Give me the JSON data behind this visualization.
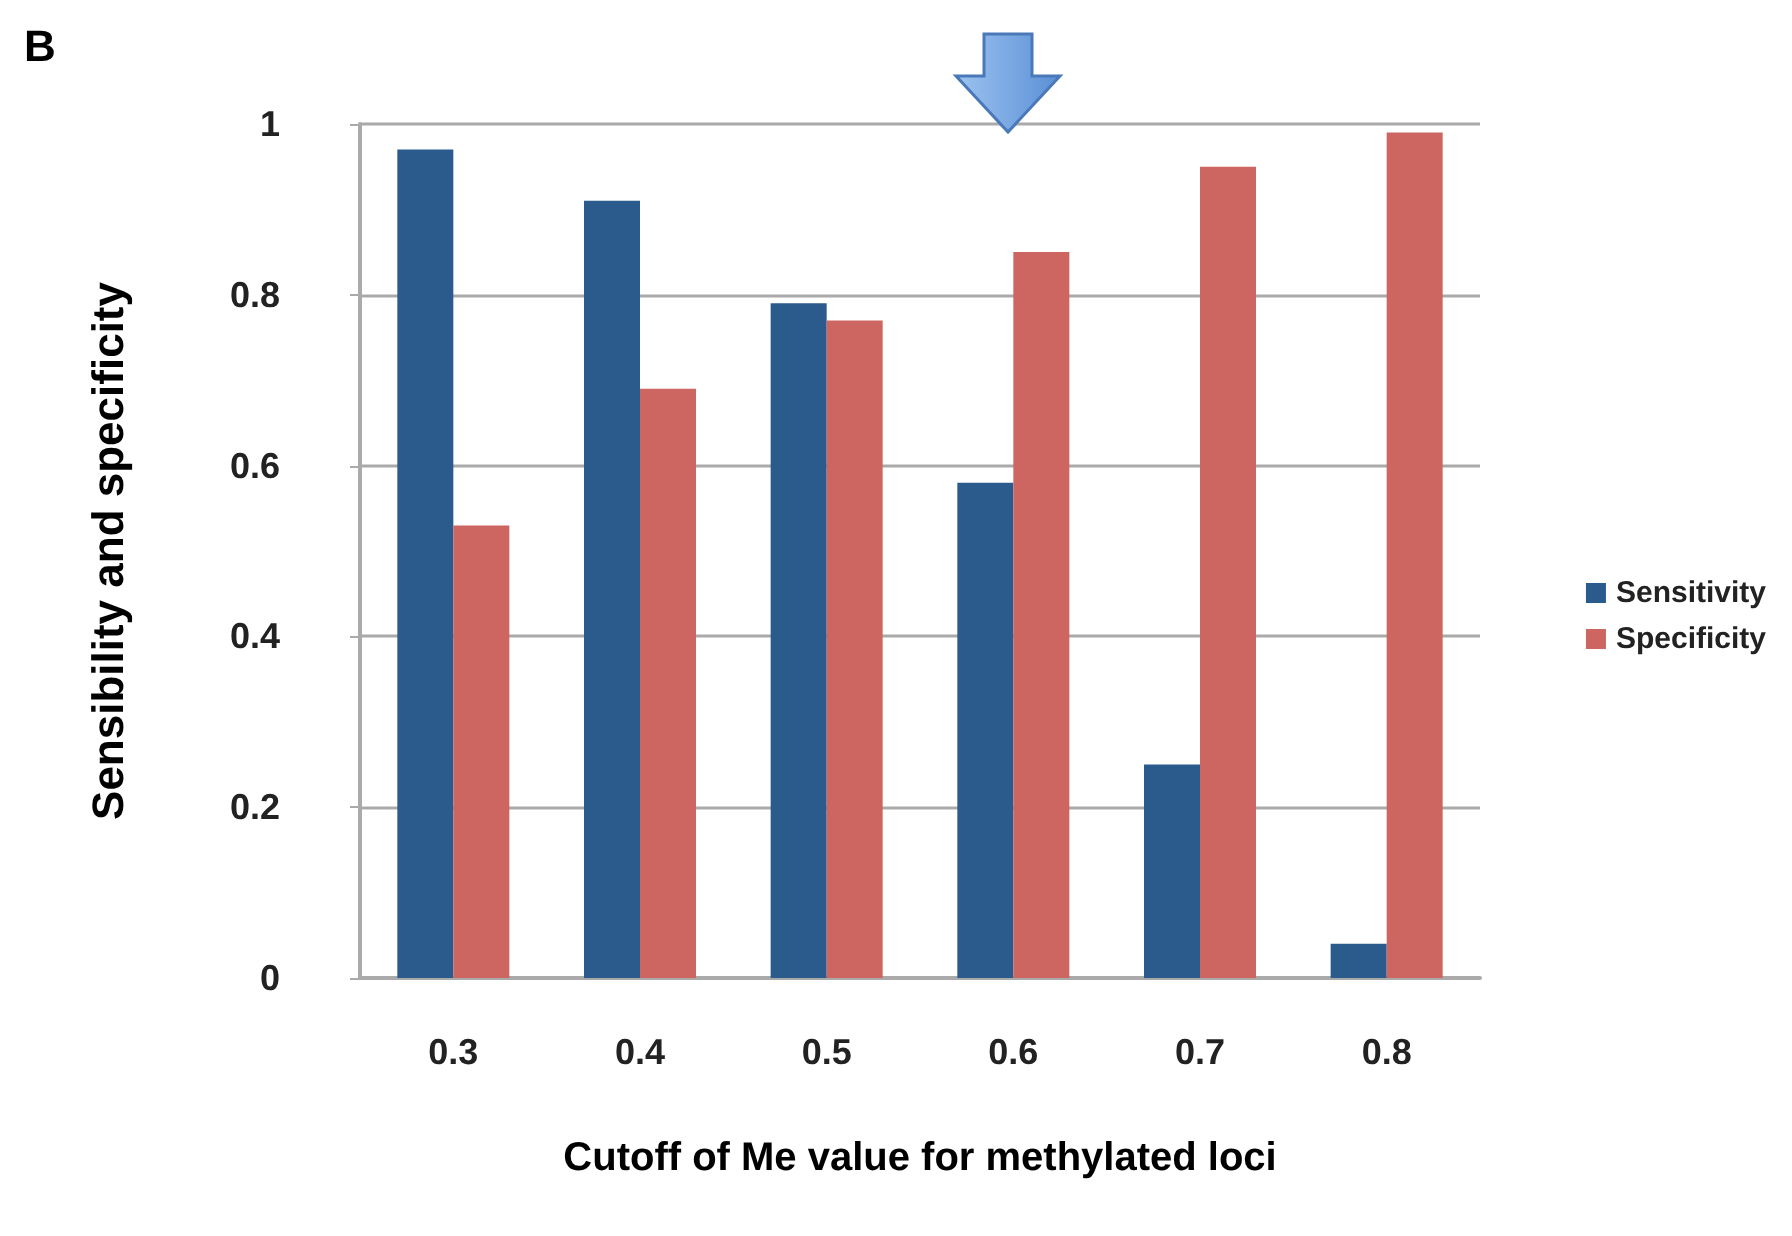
{
  "chart_data": {
    "type": "bar",
    "xlabel": "Cutoff of Me value for methylated loci",
    "ylabel": "Sensibility and specificity",
    "annotations": [
      "B"
    ],
    "categories": [
      "0.3",
      "0.4",
      "0.5",
      "0.6",
      "0.7",
      "0.8"
    ],
    "series": [
      {
        "name": "Sensitivity",
        "color": "#2a5b8c",
        "values": [
          0.97,
          0.91,
          0.79,
          0.58,
          0.25,
          0.04
        ]
      },
      {
        "name": "Specificity",
        "color": "#cd6560",
        "values": [
          0.53,
          0.69,
          0.77,
          0.85,
          0.95,
          0.99
        ]
      }
    ],
    "ylim": [
      0,
      1
    ],
    "yticks": [
      0,
      0.2,
      0.4,
      0.6,
      0.8,
      1
    ],
    "grid": "y",
    "legend": "right"
  }
}
